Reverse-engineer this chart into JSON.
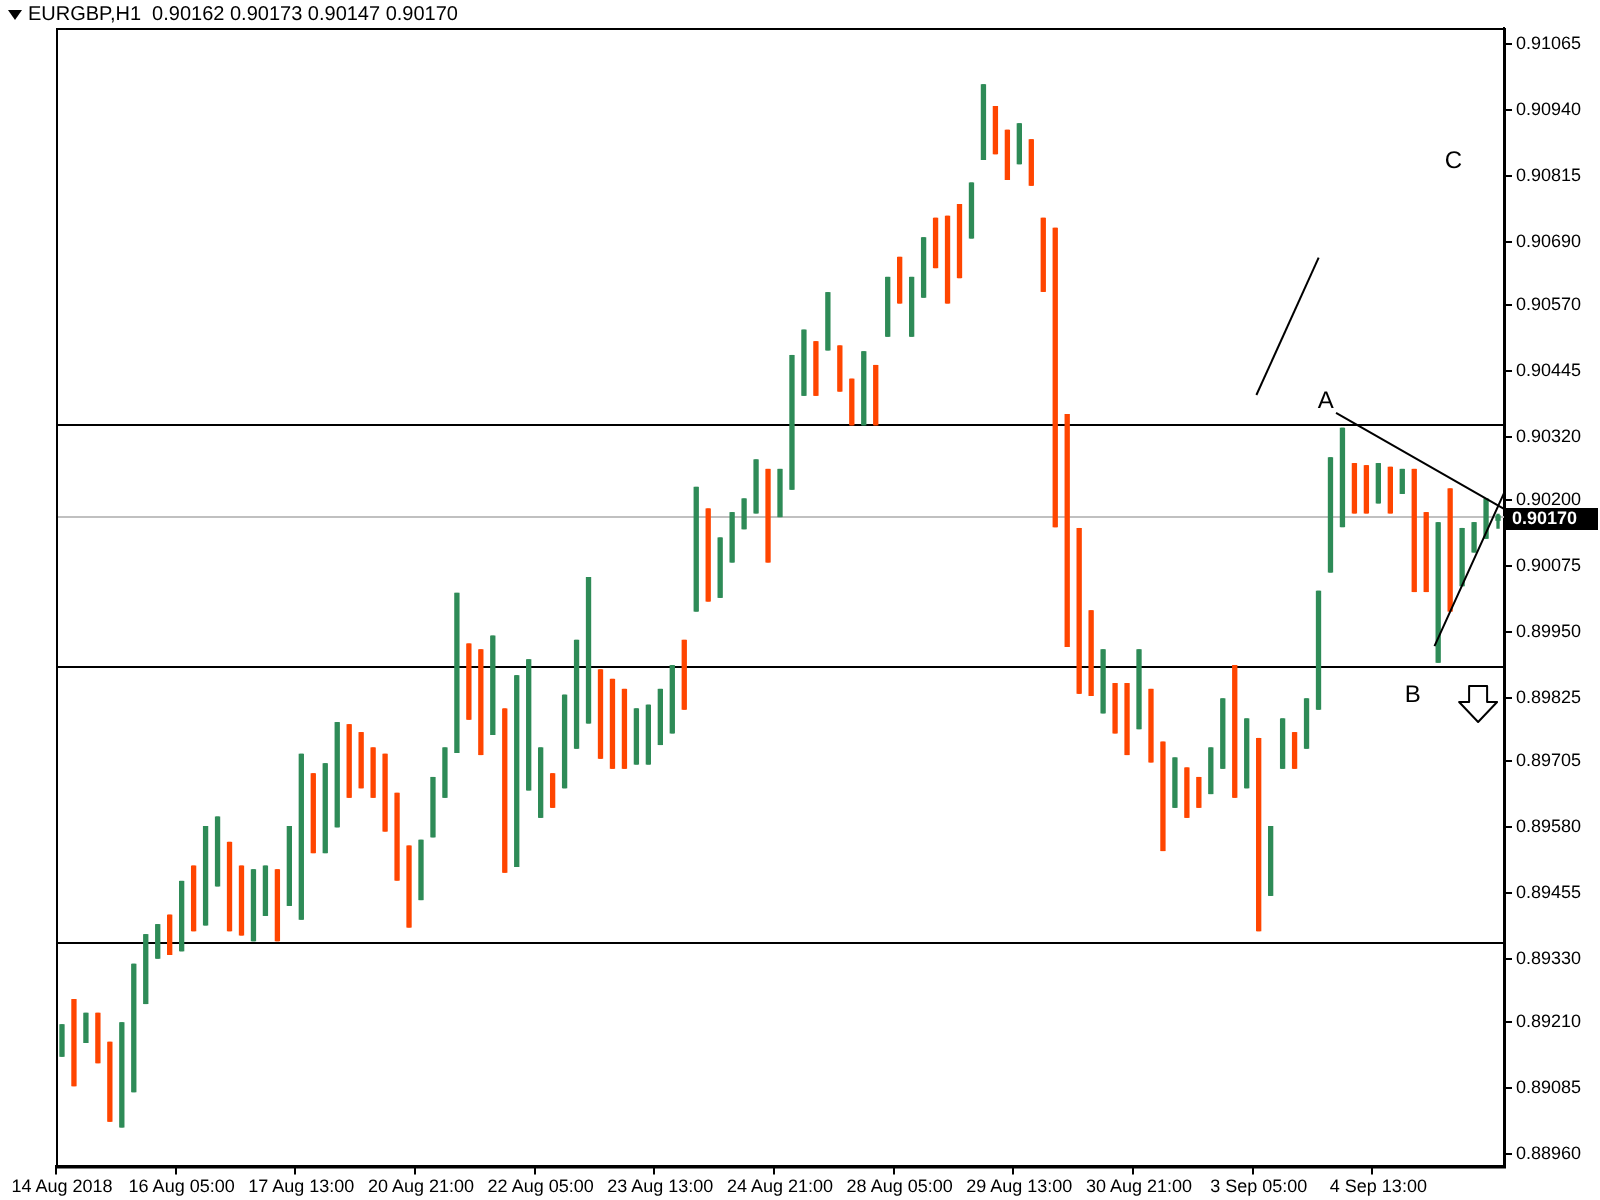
{
  "chart_data": {
    "type": "candlestick",
    "title": "EURGBP,H1  0.90162 0.90173 0.90147 0.90170",
    "categories": [
      "14 Aug 2018",
      null,
      null,
      null,
      null,
      null,
      null,
      null,
      null,
      null,
      "16 Aug 05:00",
      null,
      null,
      null,
      null,
      null,
      null,
      null,
      null,
      null,
      "17 Aug 13:00",
      null,
      null,
      null,
      null,
      null,
      null,
      null,
      null,
      null,
      "20 Aug 21:00",
      null,
      null,
      null,
      null,
      null,
      null,
      null,
      null,
      null,
      "22 Aug 05:00",
      null,
      null,
      null,
      null,
      null,
      null,
      null,
      null,
      null,
      "23 Aug 13:00",
      null,
      null,
      null,
      null,
      null,
      null,
      null,
      null,
      null,
      "24 Aug 21:00",
      null,
      null,
      null,
      null,
      null,
      null,
      null,
      null,
      null,
      "28 Aug 05:00",
      null,
      null,
      null,
      null,
      null,
      null,
      null,
      null,
      null,
      "29 Aug 13:00",
      null,
      null,
      null,
      null,
      null,
      null,
      null,
      null,
      null,
      "30 Aug 21:00",
      null,
      null,
      null,
      null,
      null,
      null,
      null,
      null,
      null,
      "3 Sep 05:00",
      null,
      null,
      null,
      null,
      null,
      null,
      null,
      null,
      null,
      "4 Sep 13:00",
      null,
      null,
      null,
      null,
      null,
      null,
      null,
      null,
      null,
      null
    ],
    "ohlc": [
      [
        0.89146,
        0.89205,
        0.89146,
        0.89205
      ],
      [
        0.89253,
        0.89253,
        0.8909,
        0.8909
      ],
      [
        0.89172,
        0.89227,
        0.89172,
        0.89227
      ],
      [
        0.89227,
        0.89227,
        0.89134,
        0.89134
      ],
      [
        0.89172,
        0.89172,
        0.89023,
        0.89023
      ],
      [
        0.89012,
        0.89209,
        0.89012,
        0.89209
      ],
      [
        0.89079,
        0.8932,
        0.89079,
        0.8932
      ],
      [
        0.89246,
        0.89376,
        0.89246,
        0.89376
      ],
      [
        0.89332,
        0.89395,
        0.89332,
        0.89395
      ],
      [
        0.89413,
        0.89413,
        0.89339,
        0.89339
      ],
      [
        0.89346,
        0.89477,
        0.89346,
        0.89477
      ],
      [
        0.89506,
        0.89506,
        0.89384,
        0.89384
      ],
      [
        0.89395,
        0.89581,
        0.89395,
        0.89581
      ],
      [
        0.89469,
        0.89599,
        0.89469,
        0.89599
      ],
      [
        0.89551,
        0.89551,
        0.89384,
        0.89384
      ],
      [
        0.89506,
        0.89506,
        0.89376,
        0.89376
      ],
      [
        0.89365,
        0.89499,
        0.89365,
        0.89499
      ],
      [
        0.89413,
        0.89506,
        0.89413,
        0.89506
      ],
      [
        0.89499,
        0.89499,
        0.89365,
        0.89365
      ],
      [
        0.89432,
        0.89581,
        0.89432,
        0.89581
      ],
      [
        0.89406,
        0.89718,
        0.89406,
        0.89718
      ],
      [
        0.89681,
        0.89681,
        0.89532,
        0.89532
      ],
      [
        0.89532,
        0.897,
        0.89532,
        0.897
      ],
      [
        0.89581,
        0.89778,
        0.89581,
        0.89778
      ],
      [
        0.89774,
        0.89774,
        0.89637,
        0.89637
      ],
      [
        0.89759,
        0.89759,
        0.89655,
        0.89655
      ],
      [
        0.8973,
        0.8973,
        0.89637,
        0.89637
      ],
      [
        0.89718,
        0.89718,
        0.89573,
        0.89573
      ],
      [
        0.89644,
        0.89644,
        0.8948,
        0.8948
      ],
      [
        0.89544,
        0.89544,
        0.89391,
        0.89391
      ],
      [
        0.89443,
        0.89555,
        0.89443,
        0.89555
      ],
      [
        0.89562,
        0.89674,
        0.89562,
        0.89674
      ],
      [
        0.89637,
        0.8973,
        0.89637,
        0.8973
      ],
      [
        0.89722,
        0.90023,
        0.89722,
        0.90023
      ],
      [
        0.89927,
        0.89927,
        0.89785,
        0.89785
      ],
      [
        0.89916,
        0.89916,
        0.89718,
        0.89718
      ],
      [
        0.89756,
        0.89942,
        0.89756,
        0.89942
      ],
      [
        0.89804,
        0.89804,
        0.89495,
        0.89495
      ],
      [
        0.89506,
        0.89867,
        0.89506,
        0.89867
      ],
      [
        0.89651,
        0.89897,
        0.89651,
        0.89897
      ],
      [
        0.89599,
        0.8973,
        0.89599,
        0.8973
      ],
      [
        0.89681,
        0.89681,
        0.89618,
        0.89618
      ],
      [
        0.89655,
        0.8983,
        0.89655,
        0.8983
      ],
      [
        0.8973,
        0.89934,
        0.8973,
        0.89934
      ],
      [
        0.89778,
        0.90053,
        0.89778,
        0.90053
      ],
      [
        0.89878,
        0.89878,
        0.89711,
        0.89711
      ],
      [
        0.8986,
        0.8986,
        0.89692,
        0.89692
      ],
      [
        0.89841,
        0.89841,
        0.89692,
        0.89692
      ],
      [
        0.897,
        0.89804,
        0.897,
        0.89804
      ],
      [
        0.897,
        0.89811,
        0.897,
        0.89811
      ],
      [
        0.89737,
        0.89841,
        0.89737,
        0.89841
      ],
      [
        0.89759,
        0.89886,
        0.89759,
        0.89886
      ],
      [
        0.89934,
        0.89934,
        0.89804,
        0.89804
      ],
      [
        0.8999,
        0.90224,
        0.8999,
        0.90224
      ],
      [
        0.90183,
        0.90183,
        0.90009,
        0.90009
      ],
      [
        0.90016,
        0.90128,
        0.90016,
        0.90128
      ],
      [
        0.90083,
        0.90176,
        0.90083,
        0.90176
      ],
      [
        0.90146,
        0.90202,
        0.90146,
        0.90202
      ],
      [
        0.90176,
        0.90276,
        0.90176,
        0.90276
      ],
      [
        0.90258,
        0.90258,
        0.90083,
        0.90083
      ],
      [
        0.90169,
        0.90258,
        0.90169,
        0.90258
      ],
      [
        0.90221,
        0.90474,
        0.90221,
        0.90474
      ],
      [
        0.90399,
        0.90522,
        0.90399,
        0.90522
      ],
      [
        0.905,
        0.905,
        0.90399,
        0.90399
      ],
      [
        0.90485,
        0.90593,
        0.90485,
        0.90593
      ],
      [
        0.90492,
        0.90492,
        0.90407,
        0.90407
      ],
      [
        0.90429,
        0.90429,
        0.90343,
        0.90343
      ],
      [
        0.90343,
        0.90481,
        0.90343,
        0.90481
      ],
      [
        0.90455,
        0.90455,
        0.90343,
        0.90343
      ],
      [
        0.90511,
        0.90622,
        0.90511,
        0.90622
      ],
      [
        0.9066,
        0.9066,
        0.90574,
        0.90574
      ],
      [
        0.90511,
        0.90622,
        0.90511,
        0.90622
      ],
      [
        0.90585,
        0.90697,
        0.90585,
        0.90697
      ],
      [
        0.90734,
        0.90734,
        0.90641,
        0.90641
      ],
      [
        0.90738,
        0.90738,
        0.90574,
        0.90574
      ],
      [
        0.9076,
        0.9076,
        0.90622,
        0.90622
      ],
      [
        0.90697,
        0.90801,
        0.90697,
        0.90801
      ],
      [
        0.90846,
        0.90987,
        0.90846,
        0.90987
      ],
      [
        0.90946,
        0.90946,
        0.90857,
        0.90857
      ],
      [
        0.90901,
        0.90901,
        0.90808,
        0.90808
      ],
      [
        0.90838,
        0.90913,
        0.90838,
        0.90913
      ],
      [
        0.90883,
        0.90883,
        0.90797,
        0.90797
      ],
      [
        0.90734,
        0.90734,
        0.90596,
        0.90596
      ],
      [
        0.90715,
        0.90715,
        0.9015,
        0.9015
      ],
      [
        0.90362,
        0.90362,
        0.89923,
        0.89923
      ],
      [
        0.90146,
        0.90146,
        0.89834,
        0.89834
      ],
      [
        0.8999,
        0.8999,
        0.8983,
        0.8983
      ],
      [
        0.89797,
        0.89916,
        0.89797,
        0.89916
      ],
      [
        0.89852,
        0.89852,
        0.89759,
        0.89759
      ],
      [
        0.89852,
        0.89852,
        0.89718,
        0.89718
      ],
      [
        0.89767,
        0.89916,
        0.89767,
        0.89916
      ],
      [
        0.89841,
        0.89841,
        0.89704,
        0.89704
      ],
      [
        0.89741,
        0.89741,
        0.89536,
        0.89536
      ],
      [
        0.89618,
        0.89711,
        0.89618,
        0.89711
      ],
      [
        0.89692,
        0.89692,
        0.89599,
        0.89599
      ],
      [
        0.89674,
        0.89674,
        0.89618,
        0.89618
      ],
      [
        0.89644,
        0.8973,
        0.89644,
        0.8973
      ],
      [
        0.89692,
        0.89823,
        0.89692,
        0.89823
      ],
      [
        0.89886,
        0.89886,
        0.89637,
        0.89637
      ],
      [
        0.89655,
        0.89785,
        0.89655,
        0.89785
      ],
      [
        0.89748,
        0.89748,
        0.89384,
        0.89384
      ],
      [
        0.89451,
        0.89581,
        0.89451,
        0.89581
      ],
      [
        0.89692,
        0.89785,
        0.89692,
        0.89785
      ],
      [
        0.89759,
        0.89759,
        0.89692,
        0.89692
      ],
      [
        0.8973,
        0.89823,
        0.8973,
        0.89823
      ],
      [
        0.89804,
        0.90027,
        0.89804,
        0.90027
      ],
      [
        0.90064,
        0.9028,
        0.90064,
        0.9028
      ],
      [
        0.9015,
        0.90336,
        0.9015,
        0.90336
      ],
      [
        0.90269,
        0.90269,
        0.90176,
        0.90176
      ],
      [
        0.90265,
        0.90265,
        0.90176,
        0.90176
      ],
      [
        0.90195,
        0.90269,
        0.90195,
        0.90269
      ],
      [
        0.90262,
        0.90262,
        0.90176,
        0.90176
      ],
      [
        0.90213,
        0.90258,
        0.90213,
        0.90258
      ],
      [
        0.90258,
        0.90258,
        0.90027,
        0.90027
      ],
      [
        0.90176,
        0.90176,
        0.90027,
        0.90027
      ],
      [
        0.89893,
        0.90157,
        0.89893,
        0.90157
      ],
      [
        0.90221,
        0.90221,
        0.8999,
        0.8999
      ],
      [
        0.90038,
        0.90146,
        0.90038,
        0.90146
      ],
      [
        0.90102,
        0.90157,
        0.90102,
        0.90157
      ],
      [
        0.90128,
        0.90202,
        0.90128,
        0.90202
      ],
      [
        0.90162,
        0.90173,
        0.90147,
        0.9017
      ]
    ],
    "colors": [
      "#2e8b57",
      "#ff4500",
      "#2e8b57",
      "#ff4500",
      "#ff4500",
      "#2e8b57",
      "#2e8b57",
      "#2e8b57",
      "#2e8b57",
      "#ff4500",
      "#2e8b57",
      "#ff4500",
      "#2e8b57",
      "#2e8b57",
      "#ff4500",
      "#ff4500",
      "#2e8b57",
      "#2e8b57",
      "#ff4500",
      "#2e8b57",
      "#2e8b57",
      "#ff4500",
      "#2e8b57",
      "#2e8b57",
      "#ff4500",
      "#ff4500",
      "#ff4500",
      "#ff4500",
      "#ff4500",
      "#ff4500",
      "#2e8b57",
      "#2e8b57",
      "#2e8b57",
      "#2e8b57",
      "#ff4500",
      "#ff4500",
      "#2e8b57",
      "#ff4500",
      "#2e8b57",
      "#2e8b57",
      "#2e8b57",
      "#ff4500",
      "#2e8b57",
      "#2e8b57",
      "#2e8b57",
      "#ff4500",
      "#ff4500",
      "#ff4500",
      "#2e8b57",
      "#2e8b57",
      "#2e8b57",
      "#2e8b57",
      "#ff4500",
      "#2e8b57",
      "#ff4500",
      "#2e8b57",
      "#2e8b57",
      "#2e8b57",
      "#2e8b57",
      "#ff4500",
      "#2e8b57",
      "#2e8b57",
      "#2e8b57",
      "#ff4500",
      "#2e8b57",
      "#ff4500",
      "#ff4500",
      "#2e8b57",
      "#ff4500",
      "#2e8b57",
      "#ff4500",
      "#2e8b57",
      "#2e8b57",
      "#ff4500",
      "#ff4500",
      "#ff4500",
      "#2e8b57",
      "#2e8b57",
      "#ff4500",
      "#ff4500",
      "#2e8b57",
      "#ff4500",
      "#ff4500",
      "#ff4500",
      "#ff4500",
      "#ff4500",
      "#ff4500",
      "#2e8b57",
      "#ff4500",
      "#ff4500",
      "#2e8b57",
      "#ff4500",
      "#ff4500",
      "#2e8b57",
      "#ff4500",
      "#ff4500",
      "#2e8b57",
      "#2e8b57",
      "#ff4500",
      "#2e8b57",
      "#ff4500",
      "#2e8b57",
      "#2e8b57",
      "#ff4500",
      "#2e8b57",
      "#2e8b57",
      "#2e8b57",
      "#2e8b57",
      "#ff4500",
      "#ff4500",
      "#2e8b57",
      "#ff4500",
      "#2e8b57",
      "#ff4500",
      "#ff4500",
      "#2e8b57",
      "#ff4500",
      "#2e8b57",
      "#2e8b57",
      "#2e8b57",
      "#2e8b57"
    ],
    "ref_lines": [
      {
        "axis": "y",
        "value": 0.9017,
        "label": "0.90170",
        "color": "#c0c0c0"
      },
      {
        "axis": "y",
        "value": 0.90343,
        "color": "#000000"
      },
      {
        "axis": "y",
        "value": 0.89886,
        "color": "#000000"
      },
      {
        "axis": "y",
        "value": 0.89361,
        "color": "#000000"
      }
    ],
    "annotations": [
      {
        "text": "A",
        "y": 0.90343
      },
      "B",
      "C"
    ],
    "ylim": [
      0.88937,
      0.91095
    ],
    "yticks": [
      {
        "value": 0.8896,
        "label": "0.88960"
      },
      {
        "value": 0.89085,
        "label": "0.89085"
      },
      {
        "value": 0.8921,
        "label": "0.89210"
      },
      {
        "value": 0.8933,
        "label": "0.89330"
      },
      {
        "value": 0.89455,
        "label": "0.89455"
      },
      {
        "value": 0.8958,
        "label": "0.89580"
      },
      {
        "value": 0.89705,
        "label": "0.89705"
      },
      {
        "value": 0.89825,
        "label": "0.89825"
      },
      {
        "value": 0.8995,
        "label": "0.89950"
      },
      {
        "value": 0.90075,
        "label": "0.90075"
      },
      {
        "value": 0.902,
        "label": "0.90200"
      },
      {
        "value": 0.9032,
        "label": "0.90320"
      },
      {
        "value": 0.90445,
        "label": "0.90445"
      },
      {
        "value": 0.9057,
        "label": "0.90570"
      },
      {
        "value": 0.9069,
        "label": "0.90690"
      },
      {
        "value": 0.90815,
        "label": "0.90815"
      },
      {
        "value": 0.9094,
        "label": "0.90940"
      },
      {
        "value": 0.91065,
        "label": "0.91065"
      }
    ]
  }
}
